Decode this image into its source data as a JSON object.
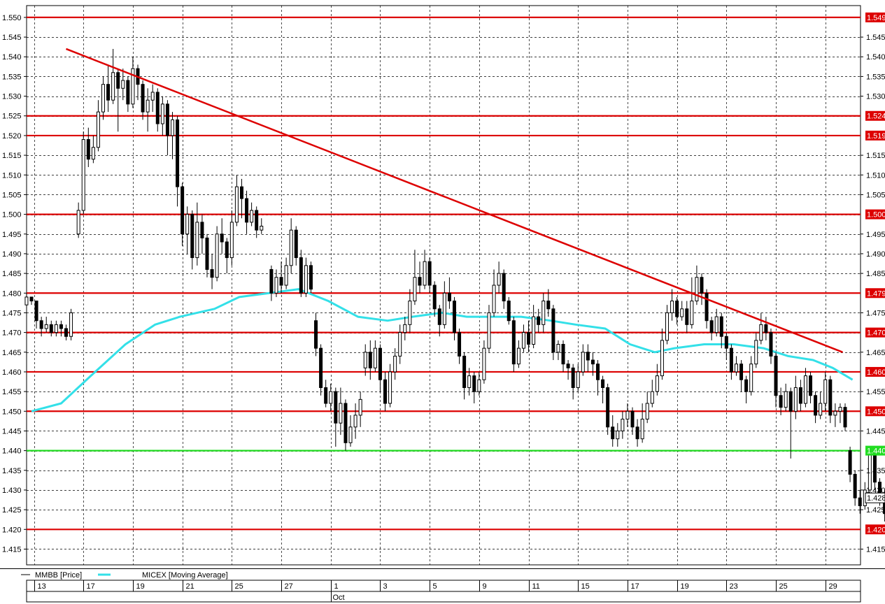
{
  "chart_data": {
    "type": "candlestick",
    "title": "",
    "ylim": [
      1.411,
      1.553
    ],
    "y_ticks": [
      "1.550",
      "1.545",
      "1.540",
      "1.535",
      "1.530",
      "1.525",
      "1.520",
      "1.515",
      "1.510",
      "1.505",
      "1.500",
      "1.495",
      "1.490",
      "1.485",
      "1.480",
      "1.475",
      "1.470",
      "1.465",
      "1.460",
      "1.455",
      "1.450",
      "1.445",
      "1.440",
      "1.435",
      "1.430",
      "1.425",
      "1.420",
      "1.415"
    ],
    "x_ticks": [
      "13",
      "17",
      "19",
      "21",
      "25",
      "27",
      "1",
      "3",
      "5",
      "9",
      "11",
      "15",
      "17",
      "19",
      "23",
      "25",
      "29"
    ],
    "month_label": "Oct",
    "grid": true,
    "legend": [
      {
        "name": "MMBB [Price]",
        "color": "#000000"
      },
      {
        "name": "MICEX [Moving Average]",
        "color": "#33e0e8"
      }
    ],
    "current_price": {
      "label": "1.428",
      "value": 1.428
    },
    "horizontal_levels": [
      {
        "value": 1.55,
        "label": "1.549",
        "color": "#dd0000"
      },
      {
        "value": 1.525,
        "label": "1.524",
        "color": "#dd0000"
      },
      {
        "value": 1.52,
        "label": "1.519",
        "color": "#dd0000"
      },
      {
        "value": 1.5,
        "label": "1.500",
        "color": "#dd0000"
      },
      {
        "value": 1.48,
        "label": "1.479",
        "color": "#dd0000"
      },
      {
        "value": 1.47,
        "label": "1.470",
        "color": "#dd0000"
      },
      {
        "value": 1.46,
        "label": "1.460",
        "color": "#dd0000"
      },
      {
        "value": 1.45,
        "label": "1.450",
        "color": "#dd0000"
      },
      {
        "value": 1.44,
        "label": "1.440",
        "color": "#22dd22"
      },
      {
        "value": 1.42,
        "label": "1.420",
        "color": "#dd0000"
      }
    ],
    "trendline": {
      "x": [
        0.7,
        16.4
      ],
      "y": [
        1.542,
        1.465
      ],
      "color": "#dd0000"
    },
    "price_series": [
      [
        -0.1,
        1.477,
        1.479,
        1.48,
        1.477
      ],
      [
        0.0,
        1.479,
        1.478,
        1.479,
        1.477
      ],
      [
        0.1,
        1.478,
        1.473,
        1.478,
        1.471
      ],
      [
        0.2,
        1.473,
        1.471,
        1.474,
        1.469
      ],
      [
        0.3,
        1.471,
        1.472,
        1.474,
        1.47
      ],
      [
        0.4,
        1.472,
        1.47,
        1.473,
        1.469
      ],
      [
        0.5,
        1.47,
        1.472,
        1.473,
        1.469
      ],
      [
        0.6,
        1.472,
        1.471,
        1.473,
        1.469
      ],
      [
        0.7,
        1.471,
        1.469,
        1.472,
        1.468
      ],
      [
        0.8,
        1.469,
        1.475,
        1.476,
        1.468
      ],
      [
        0.95,
        1.495,
        1.501,
        1.503,
        1.494
      ],
      [
        1.05,
        1.501,
        1.519,
        1.521,
        1.5
      ],
      [
        1.15,
        1.519,
        1.514,
        1.522,
        1.512
      ],
      [
        1.25,
        1.514,
        1.517,
        1.52,
        1.513
      ],
      [
        1.35,
        1.517,
        1.526,
        1.529,
        1.516
      ],
      [
        1.45,
        1.526,
        1.533,
        1.535,
        1.524
      ],
      [
        1.55,
        1.533,
        1.529,
        1.538,
        1.526
      ],
      [
        1.65,
        1.529,
        1.536,
        1.542,
        1.528
      ],
      [
        1.75,
        1.536,
        1.532,
        1.537,
        1.521
      ],
      [
        1.85,
        1.532,
        1.534,
        1.537,
        1.529
      ],
      [
        1.95,
        1.534,
        1.528,
        1.535,
        1.526
      ],
      [
        2.05,
        1.528,
        1.537,
        1.54,
        1.527
      ],
      [
        2.15,
        1.537,
        1.533,
        1.538,
        1.529
      ],
      [
        2.25,
        1.533,
        1.526,
        1.534,
        1.524
      ],
      [
        2.35,
        1.526,
        1.529,
        1.532,
        1.521
      ],
      [
        2.45,
        1.529,
        1.531,
        1.533,
        1.526
      ],
      [
        2.55,
        1.531,
        1.523,
        1.532,
        1.521
      ],
      [
        2.65,
        1.523,
        1.528,
        1.53,
        1.52
      ],
      [
        2.75,
        1.528,
        1.52,
        1.529,
        1.515
      ],
      [
        2.85,
        1.52,
        1.524,
        1.526,
        1.514
      ],
      [
        2.95,
        1.524,
        1.507,
        1.525,
        1.502
      ],
      [
        3.05,
        1.507,
        1.495,
        1.508,
        1.492
      ],
      [
        3.15,
        1.495,
        1.5,
        1.502,
        1.49
      ],
      [
        3.25,
        1.5,
        1.489,
        1.501,
        1.486
      ],
      [
        3.35,
        1.489,
        1.498,
        1.503,
        1.487
      ],
      [
        3.45,
        1.498,
        1.494,
        1.5,
        1.49
      ],
      [
        3.55,
        1.494,
        1.486,
        1.495,
        1.484
      ],
      [
        3.65,
        1.486,
        1.484,
        1.49,
        1.481
      ],
      [
        3.75,
        1.484,
        1.495,
        1.497,
        1.483
      ],
      [
        3.85,
        1.495,
        1.493,
        1.499,
        1.49
      ],
      [
        3.95,
        1.493,
        1.489,
        1.494,
        1.485
      ],
      [
        4.05,
        1.489,
        1.498,
        1.501,
        1.487
      ],
      [
        4.15,
        1.498,
        1.507,
        1.51,
        1.497
      ],
      [
        4.25,
        1.507,
        1.504,
        1.509,
        1.499
      ],
      [
        4.35,
        1.504,
        1.498,
        1.506,
        1.495
      ],
      [
        4.45,
        1.498,
        1.501,
        1.503,
        1.497
      ],
      [
        4.55,
        1.501,
        1.496,
        1.502,
        1.494
      ],
      [
        4.65,
        1.496,
        1.497,
        1.499,
        1.495
      ],
      [
        4.85,
        1.486,
        1.48,
        1.487,
        1.478
      ],
      [
        4.95,
        1.48,
        1.484,
        1.486,
        1.479
      ],
      [
        5.05,
        1.484,
        1.482,
        1.488,
        1.48
      ],
      [
        5.15,
        1.482,
        1.487,
        1.489,
        1.481
      ],
      [
        5.25,
        1.487,
        1.496,
        1.499,
        1.485
      ],
      [
        5.35,
        1.496,
        1.489,
        1.497,
        1.487
      ],
      [
        5.45,
        1.489,
        1.48,
        1.491,
        1.479
      ],
      [
        5.55,
        1.48,
        1.487,
        1.489,
        1.479
      ],
      [
        5.65,
        1.487,
        1.481,
        1.488,
        1.48
      ],
      [
        5.75,
        1.473,
        1.466,
        1.475,
        1.464
      ],
      [
        5.85,
        1.466,
        1.456,
        1.467,
        1.454
      ],
      [
        5.95,
        1.456,
        1.452,
        1.458,
        1.451
      ],
      [
        6.05,
        1.452,
        1.455,
        1.457,
        1.45
      ],
      [
        6.15,
        1.455,
        1.447,
        1.456,
        1.441
      ],
      [
        6.25,
        1.447,
        1.452,
        1.456,
        1.444
      ],
      [
        6.35,
        1.452,
        1.442,
        1.453,
        1.44
      ],
      [
        6.45,
        1.442,
        1.446,
        1.449,
        1.441
      ],
      [
        6.55,
        1.446,
        1.449,
        1.452,
        1.443
      ],
      [
        6.65,
        1.449,
        1.453,
        1.455,
        1.446
      ],
      [
        6.75,
        1.461,
        1.465,
        1.467,
        1.459
      ],
      [
        6.85,
        1.465,
        1.461,
        1.468,
        1.458
      ],
      [
        6.95,
        1.461,
        1.466,
        1.468,
        1.46
      ],
      [
        7.05,
        1.466,
        1.458,
        1.467,
        1.455
      ],
      [
        7.15,
        1.458,
        1.452,
        1.46,
        1.45
      ],
      [
        7.25,
        1.452,
        1.46,
        1.462,
        1.451
      ],
      [
        7.35,
        1.46,
        1.464,
        1.466,
        1.458
      ],
      [
        7.45,
        1.464,
        1.47,
        1.472,
        1.462
      ],
      [
        7.55,
        1.47,
        1.472,
        1.474,
        1.468
      ],
      [
        7.65,
        1.472,
        1.478,
        1.481,
        1.47
      ],
      [
        7.75,
        1.478,
        1.484,
        1.491,
        1.477
      ],
      [
        7.85,
        1.484,
        1.482,
        1.488,
        1.48
      ],
      [
        7.95,
        1.482,
        1.488,
        1.491,
        1.481
      ],
      [
        8.05,
        1.488,
        1.482,
        1.489,
        1.48
      ],
      [
        8.15,
        1.482,
        1.476,
        1.483,
        1.474
      ],
      [
        8.25,
        1.476,
        1.472,
        1.477,
        1.469
      ],
      [
        8.35,
        1.472,
        1.48,
        1.483,
        1.471
      ],
      [
        8.45,
        1.48,
        1.478,
        1.484,
        1.476
      ],
      [
        8.55,
        1.478,
        1.47,
        1.479,
        1.468
      ],
      [
        8.65,
        1.47,
        1.464,
        1.471,
        1.462
      ],
      [
        8.75,
        1.464,
        1.456,
        1.465,
        1.453
      ],
      [
        8.85,
        1.456,
        1.459,
        1.461,
        1.454
      ],
      [
        8.95,
        1.459,
        1.455,
        1.46,
        1.452
      ],
      [
        9.05,
        1.455,
        1.458,
        1.46,
        1.454
      ],
      [
        9.15,
        1.458,
        1.466,
        1.468,
        1.457
      ],
      [
        9.25,
        1.466,
        1.475,
        1.477,
        1.465
      ],
      [
        9.35,
        1.475,
        1.482,
        1.486,
        1.474
      ],
      [
        9.45,
        1.482,
        1.485,
        1.488,
        1.48
      ],
      [
        9.55,
        1.485,
        1.478,
        1.486,
        1.476
      ],
      [
        9.65,
        1.478,
        1.473,
        1.479,
        1.472
      ],
      [
        9.75,
        1.473,
        1.462,
        1.474,
        1.46
      ],
      [
        9.85,
        1.462,
        1.466,
        1.468,
        1.461
      ],
      [
        9.95,
        1.466,
        1.47,
        1.472,
        1.465
      ],
      [
        10.05,
        1.47,
        1.467,
        1.473,
        1.465
      ],
      [
        10.15,
        1.467,
        1.474,
        1.477,
        1.466
      ],
      [
        10.25,
        1.474,
        1.472,
        1.476,
        1.47
      ],
      [
        10.35,
        1.472,
        1.478,
        1.48,
        1.47
      ],
      [
        10.45,
        1.478,
        1.476,
        1.481,
        1.474
      ],
      [
        10.55,
        1.476,
        1.465,
        1.477,
        1.463
      ],
      [
        10.65,
        1.465,
        1.467,
        1.468,
        1.463
      ],
      [
        10.75,
        1.467,
        1.462,
        1.468,
        1.46
      ],
      [
        10.85,
        1.462,
        1.461,
        1.463,
        1.458
      ],
      [
        10.95,
        1.461,
        1.456,
        1.462,
        1.453
      ],
      [
        11.05,
        1.456,
        1.46,
        1.462,
        1.455
      ],
      [
        11.15,
        1.46,
        1.465,
        1.467,
        1.459
      ],
      [
        11.25,
        1.465,
        1.463,
        1.467,
        1.46
      ],
      [
        11.35,
        1.463,
        1.462,
        1.465,
        1.459
      ],
      [
        11.45,
        1.462,
        1.458,
        1.463,
        1.454
      ],
      [
        11.55,
        1.458,
        1.456,
        1.459,
        1.452
      ],
      [
        11.65,
        1.456,
        1.446,
        1.457,
        1.444
      ],
      [
        11.75,
        1.446,
        1.443,
        1.449,
        1.441
      ],
      [
        11.85,
        1.443,
        1.445,
        1.447,
        1.441
      ],
      [
        11.95,
        1.445,
        1.448,
        1.45,
        1.443
      ],
      [
        12.05,
        1.448,
        1.45,
        1.452,
        1.446
      ],
      [
        12.15,
        1.45,
        1.446,
        1.451,
        1.444
      ],
      [
        12.25,
        1.446,
        1.443,
        1.448,
        1.441
      ],
      [
        12.35,
        1.443,
        1.448,
        1.452,
        1.442
      ],
      [
        12.45,
        1.448,
        1.452,
        1.455,
        1.447
      ],
      [
        12.55,
        1.452,
        1.455,
        1.458,
        1.451
      ],
      [
        12.65,
        1.455,
        1.459,
        1.462,
        1.454
      ],
      [
        12.75,
        1.459,
        1.468,
        1.471,
        1.458
      ],
      [
        12.85,
        1.468,
        1.475,
        1.477,
        1.467
      ],
      [
        12.95,
        1.475,
        1.478,
        1.481,
        1.473
      ],
      [
        13.05,
        1.478,
        1.474,
        1.479,
        1.472
      ],
      [
        13.15,
        1.474,
        1.476,
        1.478,
        1.473
      ],
      [
        13.25,
        1.476,
        1.472,
        1.478,
        1.47
      ],
      [
        13.35,
        1.472,
        1.478,
        1.484,
        1.471
      ],
      [
        13.45,
        1.478,
        1.484,
        1.487,
        1.477
      ],
      [
        13.55,
        1.484,
        1.48,
        1.485,
        1.477
      ],
      [
        13.65,
        1.48,
        1.473,
        1.481,
        1.471
      ],
      [
        13.75,
        1.473,
        1.47,
        1.474,
        1.468
      ],
      [
        13.85,
        1.47,
        1.474,
        1.476,
        1.469
      ],
      [
        13.95,
        1.474,
        1.469,
        1.475,
        1.466
      ],
      [
        14.05,
        1.469,
        1.466,
        1.47,
        1.463
      ],
      [
        14.15,
        1.466,
        1.46,
        1.467,
        1.458
      ],
      [
        14.25,
        1.46,
        1.462,
        1.464,
        1.459
      ],
      [
        14.35,
        1.462,
        1.458,
        1.463,
        1.455
      ],
      [
        14.45,
        1.458,
        1.455,
        1.459,
        1.452
      ],
      [
        14.55,
        1.455,
        1.462,
        1.464,
        1.454
      ],
      [
        14.65,
        1.462,
        1.468,
        1.47,
        1.461
      ],
      [
        14.75,
        1.468,
        1.472,
        1.475,
        1.467
      ],
      [
        14.85,
        1.472,
        1.47,
        1.474,
        1.468
      ],
      [
        14.95,
        1.47,
        1.464,
        1.471,
        1.462
      ],
      [
        15.05,
        1.464,
        1.454,
        1.465,
        1.451
      ],
      [
        15.15,
        1.454,
        1.451,
        1.456,
        1.449
      ],
      [
        15.25,
        1.451,
        1.455,
        1.457,
        1.45
      ],
      [
        15.35,
        1.455,
        1.45,
        1.456,
        1.438
      ],
      [
        15.45,
        1.45,
        1.456,
        1.459,
        1.448
      ],
      [
        15.55,
        1.456,
        1.452,
        1.458,
        1.45
      ],
      [
        15.65,
        1.452,
        1.459,
        1.461,
        1.451
      ],
      [
        15.75,
        1.459,
        1.454,
        1.46,
        1.452
      ],
      [
        15.85,
        1.454,
        1.449,
        1.455,
        1.447
      ],
      [
        15.95,
        1.449,
        1.452,
        1.455,
        1.448
      ],
      [
        16.05,
        1.452,
        1.458,
        1.46,
        1.45
      ],
      [
        16.15,
        1.458,
        1.449,
        1.459,
        1.447
      ],
      [
        16.25,
        1.449,
        1.45,
        1.452,
        1.446
      ],
      [
        16.35,
        1.45,
        1.451,
        1.452,
        1.447
      ],
      [
        16.45,
        1.451,
        1.446,
        1.452,
        1.445
      ],
      [
        16.55,
        1.44,
        1.434,
        1.441,
        1.432
      ],
      [
        16.65,
        1.434,
        1.428,
        1.435,
        1.426
      ],
      [
        16.75,
        1.428,
        1.426,
        1.43,
        1.424
      ],
      [
        16.85,
        1.426,
        1.43,
        1.432,
        1.425
      ],
      [
        16.95,
        1.43,
        1.44,
        1.441,
        1.428
      ],
      [
        17.05,
        1.44,
        1.432,
        1.441,
        1.43
      ],
      [
        17.15,
        1.432,
        1.428,
        1.433,
        1.426
      ],
      [
        17.25,
        1.428,
        1.424,
        1.43,
        1.422
      ],
      [
        17.35,
        1.424,
        1.428,
        1.43,
        1.423
      ]
    ],
    "moving_average": {
      "name": "MICEX [Moving Average]",
      "x": [
        0.0,
        0.6,
        1.2,
        1.9,
        2.5,
        3.0,
        3.7,
        4.2,
        4.8,
        5.4,
        6.0,
        6.6,
        7.2,
        7.7,
        8.3,
        8.8,
        9.4,
        9.9,
        10.5,
        11.0,
        11.6,
        12.1,
        12.6,
        13.0,
        13.6,
        14.2,
        14.8,
        15.3,
        15.8,
        16.2,
        16.6
      ],
      "y": [
        1.45,
        1.452,
        1.459,
        1.467,
        1.472,
        1.474,
        1.476,
        1.479,
        1.48,
        1.481,
        1.478,
        1.474,
        1.473,
        1.474,
        1.475,
        1.474,
        1.474,
        1.474,
        1.473,
        1.472,
        1.471,
        1.467,
        1.465,
        1.466,
        1.467,
        1.467,
        1.466,
        1.464,
        1.463,
        1.461,
        1.458
      ]
    }
  }
}
